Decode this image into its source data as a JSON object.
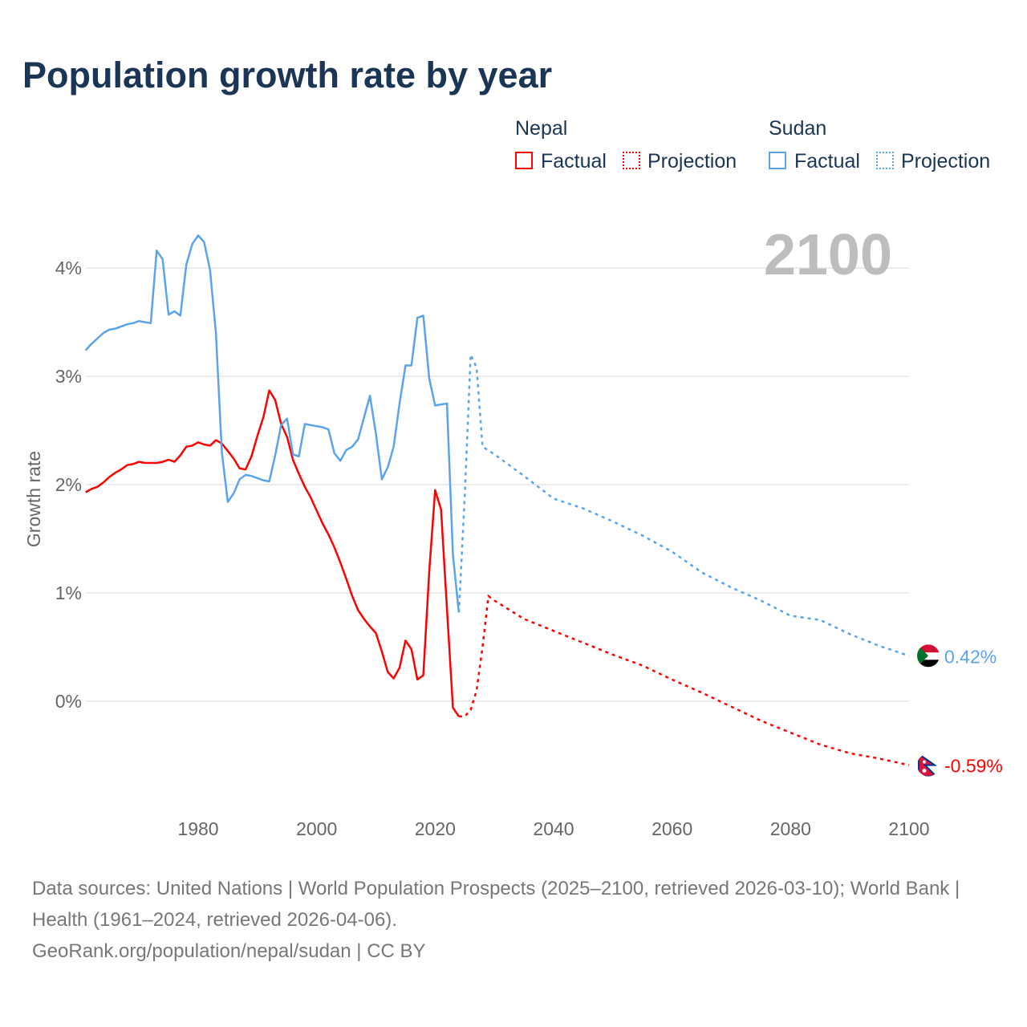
{
  "chart_data": {
    "type": "line",
    "title": "Population growth rate by year",
    "ylabel": "Growth rate",
    "xlabel": "",
    "xlim": [
      1961,
      2100
    ],
    "ylim": [
      -0.9,
      4.5
    ],
    "x_ticks": [
      1980,
      2000,
      2020,
      2040,
      2060,
      2080,
      2100
    ],
    "x_tick_labels": [
      "1980",
      "2000",
      "2020",
      "2040",
      "2060",
      "2080",
      "2100"
    ],
    "y_ticks": [
      0,
      1,
      2,
      3,
      4
    ],
    "y_tick_labels": [
      "0%",
      "1%",
      "2%",
      "3%",
      "4%"
    ],
    "grid": true,
    "year_label": "2100",
    "legend": {
      "groups": [
        {
          "name": "Nepal",
          "factual": "Factual",
          "projection": "Projection"
        },
        {
          "name": "Sudan",
          "factual": "Factual",
          "projection": "Projection"
        }
      ],
      "placement": "top-right"
    },
    "series": [
      {
        "name": "Nepal",
        "color": "#ff0000",
        "end_label": "-0.59%",
        "factual": {
          "x": [
            1961,
            1962,
            1963,
            1964,
            1965,
            1966,
            1967,
            1968,
            1969,
            1970,
            1971,
            1972,
            1973,
            1974,
            1975,
            1976,
            1977,
            1978,
            1979,
            1980,
            1981,
            1982,
            1983,
            1984,
            1985,
            1986,
            1987,
            1988,
            1989,
            1990,
            1991,
            1992,
            1993,
            1994,
            1995,
            1996,
            1997,
            1998,
            1999,
            2000,
            2001,
            2002,
            2003,
            2004,
            2005,
            2006,
            2007,
            2008,
            2009,
            2010,
            2011,
            2012,
            2013,
            2014,
            2015,
            2016,
            2017,
            2018,
            2019,
            2020,
            2021,
            2022,
            2023,
            2024
          ],
          "y": [
            1.93,
            1.96,
            1.98,
            2.02,
            2.07,
            2.11,
            2.14,
            2.18,
            2.19,
            2.21,
            2.2,
            2.2,
            2.2,
            2.21,
            2.23,
            2.21,
            2.27,
            2.35,
            2.36,
            2.39,
            2.37,
            2.36,
            2.41,
            2.38,
            2.31,
            2.24,
            2.15,
            2.14,
            2.26,
            2.45,
            2.62,
            2.87,
            2.78,
            2.56,
            2.44,
            2.23,
            2.1,
            1.98,
            1.88,
            1.76,
            1.64,
            1.54,
            1.42,
            1.28,
            1.13,
            0.97,
            0.84,
            0.76,
            0.69,
            0.63,
            0.46,
            0.27,
            0.21,
            0.31,
            0.56,
            0.48,
            0.2,
            0.24,
            1.2,
            1.95,
            1.77,
            0.85,
            -0.06,
            -0.14
          ]
        },
        "projection": {
          "x": [
            2024,
            2025,
            2026,
            2027,
            2028,
            2029,
            2030,
            2035,
            2040,
            2045,
            2050,
            2055,
            2060,
            2065,
            2070,
            2075,
            2080,
            2085,
            2090,
            2095,
            2100
          ],
          "y": [
            -0.14,
            -0.14,
            -0.08,
            0.1,
            0.5,
            0.97,
            0.93,
            0.76,
            0.65,
            0.54,
            0.43,
            0.33,
            0.2,
            0.08,
            -0.05,
            -0.18,
            -0.29,
            -0.4,
            -0.48,
            -0.53,
            -0.59
          ]
        }
      },
      {
        "name": "Sudan",
        "color": "#5ba4ec",
        "end_label": "0.42%",
        "factual": {
          "x": [
            1961,
            1962,
            1963,
            1964,
            1965,
            1966,
            1967,
            1968,
            1969,
            1970,
            1971,
            1972,
            1973,
            1974,
            1975,
            1976,
            1977,
            1978,
            1979,
            1980,
            1981,
            1982,
            1983,
            1984,
            1985,
            1986,
            1987,
            1988,
            1989,
            1990,
            1991,
            1992,
            1993,
            1994,
            1995,
            1996,
            1997,
            1998,
            1999,
            2000,
            2001,
            2002,
            2003,
            2004,
            2005,
            2006,
            2007,
            2008,
            2009,
            2010,
            2011,
            2012,
            2013,
            2014,
            2015,
            2016,
            2017,
            2018,
            2019,
            2020,
            2021,
            2022,
            2023,
            2024
          ],
          "y": [
            3.24,
            3.3,
            3.35,
            3.4,
            3.43,
            3.44,
            3.46,
            3.48,
            3.49,
            3.51,
            3.5,
            3.49,
            4.16,
            4.08,
            3.57,
            3.6,
            3.56,
            4.03,
            4.22,
            4.3,
            4.24,
            3.98,
            3.4,
            2.3,
            1.84,
            1.92,
            2.05,
            2.09,
            2.08,
            2.06,
            2.04,
            2.03,
            2.27,
            2.55,
            2.61,
            2.28,
            2.26,
            2.56,
            2.55,
            2.54,
            2.53,
            2.51,
            2.29,
            2.22,
            2.32,
            2.35,
            2.42,
            2.62,
            2.82,
            2.47,
            2.05,
            2.16,
            2.35,
            2.75,
            3.1,
            3.1,
            3.54,
            3.56,
            2.98,
            2.73,
            2.74,
            2.75,
            1.35,
            0.82
          ]
        },
        "projection": {
          "x": [
            2024,
            2025,
            2026,
            2027,
            2028,
            2030,
            2035,
            2040,
            2045,
            2050,
            2055,
            2060,
            2065,
            2070,
            2075,
            2080,
            2085,
            2090,
            2095,
            2100
          ],
          "y": [
            0.82,
            1.9,
            3.2,
            3.08,
            2.35,
            2.28,
            2.08,
            1.87,
            1.78,
            1.66,
            1.53,
            1.38,
            1.19,
            1.05,
            0.93,
            0.79,
            0.75,
            0.62,
            0.51,
            0.42
          ]
        }
      }
    ]
  },
  "footer": {
    "sources": "Data sources: United Nations | World Population Prospects (2025–2100, retrieved 2026-03-10); World Bank | Health (1961–2024, retrieved 2026-04-06).",
    "credit": "GeoRank.org/population/nepal/sudan | CC BY"
  }
}
